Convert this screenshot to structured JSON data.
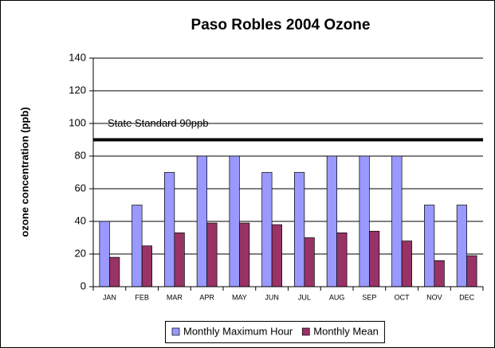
{
  "chart_data": {
    "type": "bar",
    "title": "Paso Robles 2004 Ozone",
    "y_label": "ozone concentration (ppb)",
    "categories": [
      "JAN",
      "FEB",
      "MAR",
      "APR",
      "MAY",
      "JUN",
      "JUL",
      "AUG",
      "SEP",
      "OCT",
      "NOV",
      "DEC"
    ],
    "series": [
      {
        "name": "Monthly Maximum Hour",
        "color": "#9999ff",
        "values": [
          40,
          50,
          70,
          80,
          80,
          70,
          70,
          80,
          80,
          80,
          50,
          50
        ]
      },
      {
        "name": "Monthly Mean",
        "color": "#993366",
        "values": [
          18,
          25,
          33,
          39,
          39,
          38,
          30,
          33,
          34,
          28,
          16,
          19
        ]
      }
    ],
    "reference_line": {
      "value": 90,
      "label": "State Standard 90ppb"
    },
    "ylim": [
      0,
      140
    ],
    "yticks": [
      0,
      20,
      40,
      60,
      80,
      100,
      120,
      140
    ],
    "grid": true,
    "legend": "bottom"
  }
}
